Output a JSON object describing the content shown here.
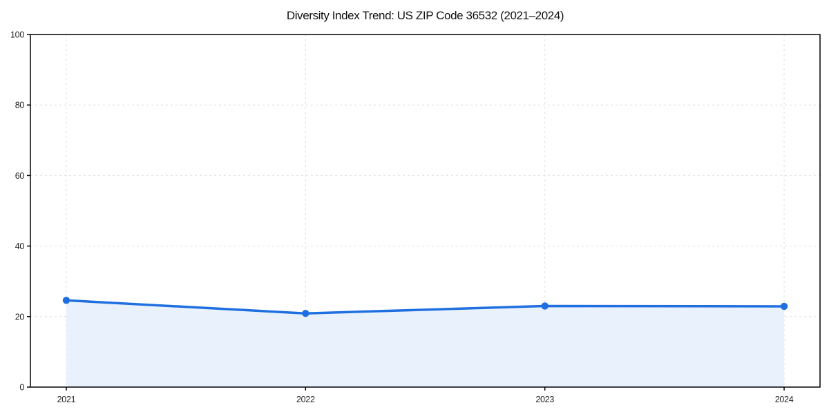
{
  "chart_data": {
    "type": "line",
    "area_fill": true,
    "title": "Diversity Index Trend: US ZIP Code 36532 (2021–2024)",
    "x": [
      2021,
      2022,
      2023,
      2024
    ],
    "xticks": [
      "2021",
      "2022",
      "2023",
      "2024"
    ],
    "series": [
      {
        "name": "Diversity Index",
        "values": [
          24.6,
          20.9,
          23.0,
          22.9
        ]
      }
    ],
    "xlabel": "",
    "ylabel": "",
    "ylim": [
      0,
      100
    ],
    "yticks": [
      0,
      20,
      40,
      60,
      80,
      100
    ],
    "grid": true,
    "grid_style": "dashed",
    "legend": "none",
    "marker": "circle",
    "colors": {
      "line": "#1f6fe0",
      "marker": "#1f6fe0",
      "fill": "#e9f1fc",
      "grid": "#dedede",
      "axis": "#000000",
      "tick_text": "#222222",
      "background": "#ffffff"
    }
  }
}
